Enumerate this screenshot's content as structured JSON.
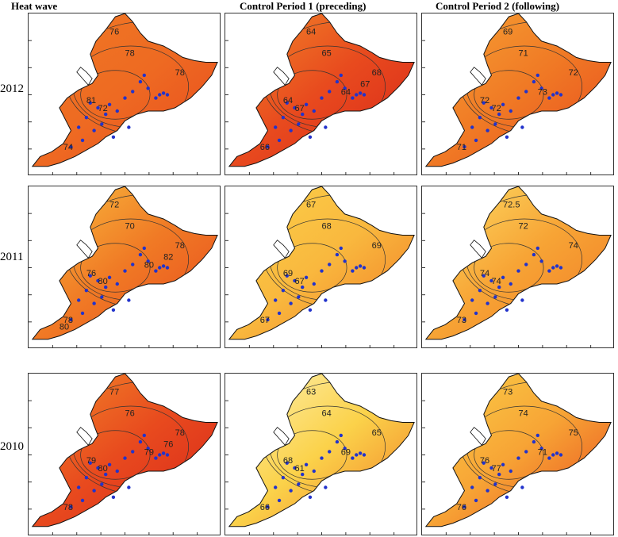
{
  "columns": [
    "Heat wave",
    "Control Period 1 (preceding)",
    "Control Period 2 (following)"
  ],
  "rows": [
    "2012",
    "2011",
    "2010"
  ],
  "colors": {
    "dark_red": "#d8261a",
    "red": "#e84a1e",
    "orange": "#f07a25",
    "light_orange": "#f7a435",
    "yellow": "#fbd24a",
    "pale": "#fdf2b6",
    "station": "#2233cc"
  },
  "panels": [
    {
      "row": "2012",
      "col": "Heat wave",
      "palette": [
        "#f07a25",
        "#ee6a22",
        "#e84a1e"
      ],
      "labels": [
        "76",
        "78",
        "78",
        "72",
        "74",
        "81"
      ]
    },
    {
      "row": "2012",
      "col": "Control Period 1 (preceding)",
      "palette": [
        "#f28a2a",
        "#e84a1e",
        "#d8261a"
      ],
      "labels": [
        "64",
        "65",
        "68",
        "67",
        "66",
        "64",
        "64",
        "67"
      ]
    },
    {
      "row": "2012",
      "col": "Control Period 2 (following)",
      "palette": [
        "#f7a435",
        "#f07a25",
        "#e84a1e"
      ],
      "labels": [
        "69",
        "71",
        "72",
        "72",
        "71",
        "72",
        "73"
      ]
    },
    {
      "row": "2011",
      "col": "Heat wave",
      "palette": [
        "#f9c040",
        "#f07a25",
        "#e84a1e"
      ],
      "labels": [
        "72",
        "70",
        "78",
        "80",
        "78",
        "76",
        "80",
        "82",
        "80"
      ]
    },
    {
      "row": "2011",
      "col": "Control Period 1 (preceding)",
      "palette": [
        "#fbd24a",
        "#f9b83e",
        "#f07a25"
      ],
      "labels": [
        "67",
        "68",
        "69",
        "67",
        "67",
        "69"
      ]
    },
    {
      "row": "2011",
      "col": "Control Period 2 (following)",
      "palette": [
        "#fde068",
        "#f7a435",
        "#f07a25"
      ],
      "labels": [
        "72.5",
        "72",
        "74",
        "74",
        "73",
        "74"
      ]
    },
    {
      "row": "2010",
      "col": "Heat wave",
      "palette": [
        "#f28a2a",
        "#e84a1e",
        "#d8261a"
      ],
      "labels": [
        "77",
        "76",
        "78",
        "80",
        "78",
        "79",
        "79",
        "76"
      ]
    },
    {
      "row": "2010",
      "col": "Control Period 1 (preceding)",
      "palette": [
        "#fdf2b6",
        "#fbd24a",
        "#f07a25"
      ],
      "labels": [
        "63",
        "64",
        "65",
        "61",
        "66",
        "68",
        "69"
      ]
    },
    {
      "row": "2010",
      "col": "Control Period 2 (following)",
      "palette": [
        "#fbd24a",
        "#f7a435",
        "#e84a1e"
      ],
      "labels": [
        "73",
        "74",
        "75",
        "77",
        "76",
        "76",
        "71"
      ]
    }
  ]
}
